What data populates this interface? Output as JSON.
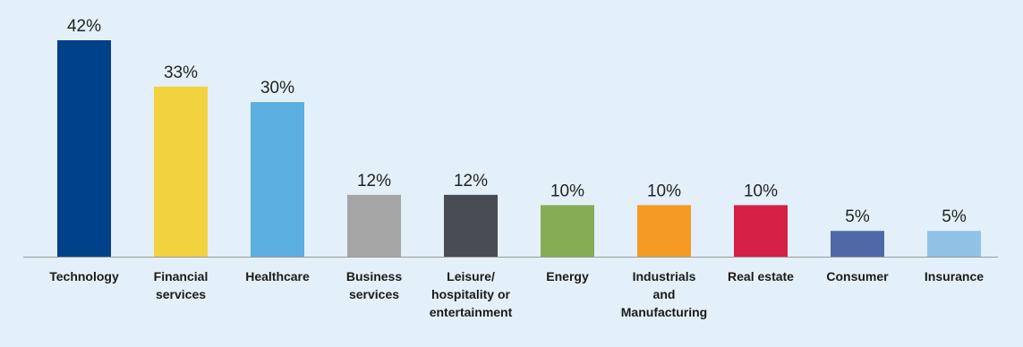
{
  "chart_data": {
    "type": "bar",
    "categories": [
      [
        "Technology"
      ],
      [
        "Financial",
        "services"
      ],
      [
        "Healthcare"
      ],
      [
        "Business",
        "services"
      ],
      [
        "Leisure/",
        "hospitality or",
        "entertainment"
      ],
      [
        "Energy"
      ],
      [
        "Industrials",
        "and",
        "Manufacturing"
      ],
      [
        "Real estate"
      ],
      [
        "Consumer"
      ],
      [
        "Insurance"
      ]
    ],
    "values": [
      42,
      33,
      30,
      12,
      12,
      10,
      10,
      10,
      5,
      5
    ],
    "value_labels": [
      "42%",
      "33%",
      "30%",
      "12%",
      "12%",
      "10%",
      "10%",
      "10%",
      "5%",
      "5%"
    ],
    "colors": [
      "#00428a",
      "#f2d23e",
      "#5aaee0",
      "#a5a5a5",
      "#474b52",
      "#84ad54",
      "#f49a25",
      "#d42045",
      "#4f68a8",
      "#90c2e8"
    ],
    "ylim": [
      0,
      42
    ],
    "axis_color": "#999999",
    "grid": false,
    "legend": "none"
  }
}
